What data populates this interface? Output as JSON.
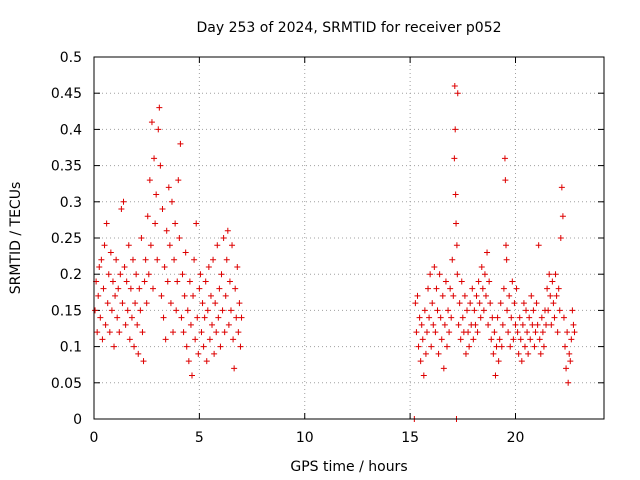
{
  "chart_data": {
    "type": "scatter",
    "title": "Day 253 of 2024, SRMTID for receiver p052",
    "xlabel": "GPS time / hours",
    "ylabel": "SRMTID / TECUs",
    "xlim": [
      0,
      24.2
    ],
    "ylim": [
      0,
      0.5
    ],
    "xticks": [
      0,
      5,
      10,
      15,
      20
    ],
    "xtick_labels": [
      "0",
      "5",
      "10",
      "15",
      "20"
    ],
    "yticks": [
      0,
      0.05,
      0.1,
      0.15,
      0.2,
      0.25,
      0.3,
      0.35,
      0.4,
      0.45,
      0.5
    ],
    "ytick_labels": [
      "0",
      "0.05",
      "0.1",
      "0.15",
      "0.2",
      "0.25",
      "0.3",
      "0.35",
      "0.4",
      "0.45",
      "0.5"
    ],
    "grid": true,
    "marker": "plus",
    "series": [
      {
        "name": "SRMTID",
        "color": "#dd0000",
        "points": [
          [
            0.05,
            0.15
          ],
          [
            0.1,
            0.19
          ],
          [
            0.15,
            0.12
          ],
          [
            0.2,
            0.17
          ],
          [
            0.25,
            0.21
          ],
          [
            0.3,
            0.14
          ],
          [
            0.35,
            0.22
          ],
          [
            0.4,
            0.11
          ],
          [
            0.45,
            0.18
          ],
          [
            0.5,
            0.24
          ],
          [
            0.55,
            0.13
          ],
          [
            0.6,
            0.27
          ],
          [
            0.65,
            0.16
          ],
          [
            0.7,
            0.2
          ],
          [
            0.75,
            0.12
          ],
          [
            0.8,
            0.23
          ],
          [
            0.85,
            0.15
          ],
          [
            0.9,
            0.19
          ],
          [
            0.95,
            0.1
          ],
          [
            1.0,
            0.17
          ],
          [
            1.05,
            0.22
          ],
          [
            1.1,
            0.14
          ],
          [
            1.15,
            0.18
          ],
          [
            1.2,
            0.12
          ],
          [
            1.25,
            0.2
          ],
          [
            1.3,
            0.29
          ],
          [
            1.35,
            0.16
          ],
          [
            1.4,
            0.3
          ],
          [
            1.45,
            0.21
          ],
          [
            1.5,
            0.13
          ],
          [
            1.55,
            0.19
          ],
          [
            1.6,
            0.15
          ],
          [
            1.65,
            0.24
          ],
          [
            1.7,
            0.11
          ],
          [
            1.75,
            0.18
          ],
          [
            1.8,
            0.14
          ],
          [
            1.85,
            0.22
          ],
          [
            1.9,
            0.1
          ],
          [
            1.95,
            0.16
          ],
          [
            2.0,
            0.2
          ],
          [
            2.05,
            0.13
          ],
          [
            2.1,
            0.09
          ],
          [
            2.15,
            0.18
          ],
          [
            2.2,
            0.15
          ],
          [
            2.25,
            0.25
          ],
          [
            2.3,
            0.12
          ],
          [
            2.35,
            0.08
          ],
          [
            2.4,
            0.19
          ],
          [
            2.45,
            0.22
          ],
          [
            2.5,
            0.16
          ],
          [
            2.55,
            0.28
          ],
          [
            2.6,
            0.2
          ],
          [
            2.65,
            0.33
          ],
          [
            2.7,
            0.24
          ],
          [
            2.75,
            0.41
          ],
          [
            2.8,
            0.18
          ],
          [
            2.85,
            0.36
          ],
          [
            2.9,
            0.27
          ],
          [
            2.95,
            0.31
          ],
          [
            3.0,
            0.22
          ],
          [
            3.05,
            0.4
          ],
          [
            3.1,
            0.43
          ],
          [
            3.15,
            0.35
          ],
          [
            3.2,
            0.17
          ],
          [
            3.25,
            0.29
          ],
          [
            3.3,
            0.14
          ],
          [
            3.35,
            0.21
          ],
          [
            3.4,
            0.11
          ],
          [
            3.45,
            0.26
          ],
          [
            3.5,
            0.19
          ],
          [
            3.55,
            0.32
          ],
          [
            3.6,
            0.24
          ],
          [
            3.65,
            0.16
          ],
          [
            3.7,
            0.3
          ],
          [
            3.75,
            0.12
          ],
          [
            3.8,
            0.22
          ],
          [
            3.85,
            0.27
          ],
          [
            3.9,
            0.15
          ],
          [
            3.95,
            0.19
          ],
          [
            4.0,
            0.33
          ],
          [
            4.05,
            0.25
          ],
          [
            4.1,
            0.38
          ],
          [
            4.15,
            0.14
          ],
          [
            4.2,
            0.2
          ],
          [
            4.25,
            0.12
          ],
          [
            4.3,
            0.17
          ],
          [
            4.35,
            0.23
          ],
          [
            4.4,
            0.1
          ],
          [
            4.45,
            0.15
          ],
          [
            4.5,
            0.08
          ],
          [
            4.55,
            0.19
          ],
          [
            4.6,
            0.13
          ],
          [
            4.65,
            0.06
          ],
          [
            4.7,
            0.17
          ],
          [
            4.75,
            0.22
          ],
          [
            4.8,
            0.11
          ],
          [
            4.85,
            0.27
          ],
          [
            4.9,
            0.14
          ],
          [
            4.95,
            0.09
          ],
          [
            5.0,
            0.18
          ],
          [
            5.05,
            0.2
          ],
          [
            5.1,
            0.12
          ],
          [
            5.15,
            0.16
          ],
          [
            5.2,
            0.1
          ],
          [
            5.25,
            0.14
          ],
          [
            5.3,
            0.19
          ],
          [
            5.35,
            0.08
          ],
          [
            5.4,
            0.15
          ],
          [
            5.45,
            0.21
          ],
          [
            5.5,
            0.11
          ],
          [
            5.55,
            0.17
          ],
          [
            5.6,
            0.13
          ],
          [
            5.65,
            0.22
          ],
          [
            5.7,
            0.09
          ],
          [
            5.75,
            0.16
          ],
          [
            5.8,
            0.12
          ],
          [
            5.85,
            0.24
          ],
          [
            5.9,
            0.14
          ],
          [
            5.95,
            0.18
          ],
          [
            6.0,
            0.1
          ],
          [
            6.05,
            0.2
          ],
          [
            6.1,
            0.15
          ],
          [
            6.15,
            0.25
          ],
          [
            6.2,
            0.12
          ],
          [
            6.25,
            0.17
          ],
          [
            6.3,
            0.22
          ],
          [
            6.35,
            0.26
          ],
          [
            6.4,
            0.13
          ],
          [
            6.45,
            0.19
          ],
          [
            6.5,
            0.15
          ],
          [
            6.55,
            0.24
          ],
          [
            6.6,
            0.11
          ],
          [
            6.65,
            0.07
          ],
          [
            6.7,
            0.18
          ],
          [
            6.75,
            0.14
          ],
          [
            6.8,
            0.21
          ],
          [
            6.85,
            0.12
          ],
          [
            6.9,
            0.16
          ],
          [
            6.95,
            0.1
          ],
          [
            7.0,
            0.14
          ],
          [
            15.2,
            0.0
          ],
          [
            15.25,
            0.16
          ],
          [
            15.3,
            0.12
          ],
          [
            15.35,
            0.17
          ],
          [
            15.4,
            0.1
          ],
          [
            15.45,
            0.14
          ],
          [
            15.5,
            0.08
          ],
          [
            15.55,
            0.13
          ],
          [
            15.6,
            0.11
          ],
          [
            15.65,
            0.06
          ],
          [
            15.7,
            0.15
          ],
          [
            15.75,
            0.09
          ],
          [
            15.8,
            0.12
          ],
          [
            15.85,
            0.18
          ],
          [
            15.9,
            0.14
          ],
          [
            15.95,
            0.2
          ],
          [
            16.0,
            0.1
          ],
          [
            16.05,
            0.16
          ],
          [
            16.1,
            0.13
          ],
          [
            16.15,
            0.21
          ],
          [
            16.2,
            0.12
          ],
          [
            16.25,
            0.18
          ],
          [
            16.3,
            0.15
          ],
          [
            16.35,
            0.09
          ],
          [
            16.4,
            0.2
          ],
          [
            16.45,
            0.14
          ],
          [
            16.5,
            0.11
          ],
          [
            16.55,
            0.17
          ],
          [
            16.6,
            0.07
          ],
          [
            16.65,
            0.13
          ],
          [
            16.7,
            0.19
          ],
          [
            16.75,
            0.1
          ],
          [
            16.8,
            0.15
          ],
          [
            16.85,
            0.12
          ],
          [
            16.9,
            0.18
          ],
          [
            16.95,
            0.14
          ],
          [
            17.0,
            0.22
          ],
          [
            17.05,
            0.17
          ],
          [
            17.1,
            0.36
          ],
          [
            17.12,
            0.46
          ],
          [
            17.14,
            0.4
          ],
          [
            17.16,
            0.31
          ],
          [
            17.18,
            0.27
          ],
          [
            17.2,
            0.0
          ],
          [
            17.22,
            0.24
          ],
          [
            17.24,
            0.2
          ],
          [
            17.26,
            0.45
          ],
          [
            17.3,
            0.13
          ],
          [
            17.35,
            0.16
          ],
          [
            17.4,
            0.11
          ],
          [
            17.45,
            0.19
          ],
          [
            17.5,
            0.14
          ],
          [
            17.55,
            0.12
          ],
          [
            17.6,
            0.17
          ],
          [
            17.65,
            0.09
          ],
          [
            17.7,
            0.15
          ],
          [
            17.75,
            0.12
          ],
          [
            17.8,
            0.1
          ],
          [
            17.85,
            0.16
          ],
          [
            17.9,
            0.13
          ],
          [
            17.95,
            0.18
          ],
          [
            18.0,
            0.11
          ],
          [
            18.05,
            0.15
          ],
          [
            18.1,
            0.13
          ],
          [
            18.15,
            0.17
          ],
          [
            18.2,
            0.12
          ],
          [
            18.25,
            0.19
          ],
          [
            18.3,
            0.16
          ],
          [
            18.35,
            0.14
          ],
          [
            18.4,
            0.21
          ],
          [
            18.45,
            0.18
          ],
          [
            18.5,
            0.15
          ],
          [
            18.55,
            0.2
          ],
          [
            18.6,
            0.17
          ],
          [
            18.65,
            0.23
          ],
          [
            18.7,
            0.13
          ],
          [
            18.75,
            0.19
          ],
          [
            18.8,
            0.16
          ],
          [
            18.85,
            0.11
          ],
          [
            18.9,
            0.14
          ],
          [
            18.95,
            0.09
          ],
          [
            19.0,
            0.12
          ],
          [
            19.05,
            0.06
          ],
          [
            19.1,
            0.1
          ],
          [
            19.15,
            0.14
          ],
          [
            19.2,
            0.08
          ],
          [
            19.25,
            0.11
          ],
          [
            19.3,
            0.16
          ],
          [
            19.35,
            0.1
          ],
          [
            19.4,
            0.13
          ],
          [
            19.45,
            0.18
          ],
          [
            19.5,
            0.36
          ],
          [
            19.52,
            0.33
          ],
          [
            19.55,
            0.24
          ],
          [
            19.58,
            0.22
          ],
          [
            19.6,
            0.15
          ],
          [
            19.65,
            0.12
          ],
          [
            19.7,
            0.17
          ],
          [
            19.75,
            0.1
          ],
          [
            19.8,
            0.14
          ],
          [
            19.85,
            0.19
          ],
          [
            19.9,
            0.11
          ],
          [
            19.95,
            0.16
          ],
          [
            20.0,
            0.13
          ],
          [
            20.05,
            0.18
          ],
          [
            20.1,
            0.12
          ],
          [
            20.15,
            0.09
          ],
          [
            20.2,
            0.14
          ],
          [
            20.25,
            0.11
          ],
          [
            20.3,
            0.08
          ],
          [
            20.35,
            0.13
          ],
          [
            20.4,
            0.16
          ],
          [
            20.45,
            0.1
          ],
          [
            20.5,
            0.15
          ],
          [
            20.55,
            0.12
          ],
          [
            20.6,
            0.09
          ],
          [
            20.65,
            0.14
          ],
          [
            20.7,
            0.11
          ],
          [
            20.75,
            0.17
          ],
          [
            20.8,
            0.13
          ],
          [
            20.85,
            0.15
          ],
          [
            20.9,
            0.1
          ],
          [
            20.95,
            0.12
          ],
          [
            21.0,
            0.16
          ],
          [
            21.05,
            0.13
          ],
          [
            21.1,
            0.24
          ],
          [
            21.15,
            0.11
          ],
          [
            21.2,
            0.09
          ],
          [
            21.25,
            0.14
          ],
          [
            21.3,
            0.12
          ],
          [
            21.35,
            0.1
          ],
          [
            21.4,
            0.15
          ],
          [
            21.45,
            0.13
          ],
          [
            21.5,
            0.18
          ],
          [
            21.55,
            0.15
          ],
          [
            21.6,
            0.2
          ],
          [
            21.65,
            0.17
          ],
          [
            21.7,
            0.13
          ],
          [
            21.75,
            0.19
          ],
          [
            21.8,
            0.16
          ],
          [
            21.85,
            0.14
          ],
          [
            21.9,
            0.2
          ],
          [
            21.95,
            0.17
          ],
          [
            22.0,
            0.12
          ],
          [
            22.05,
            0.18
          ],
          [
            22.1,
            0.15
          ],
          [
            22.15,
            0.25
          ],
          [
            22.2,
            0.32
          ],
          [
            22.25,
            0.28
          ],
          [
            22.3,
            0.14
          ],
          [
            22.35,
            0.1
          ],
          [
            22.4,
            0.07
          ],
          [
            22.45,
            0.12
          ],
          [
            22.5,
            0.05
          ],
          [
            22.55,
            0.09
          ],
          [
            22.6,
            0.08
          ],
          [
            22.65,
            0.11
          ],
          [
            22.7,
            0.15
          ],
          [
            22.75,
            0.13
          ],
          [
            22.8,
            0.12
          ]
        ]
      }
    ]
  }
}
